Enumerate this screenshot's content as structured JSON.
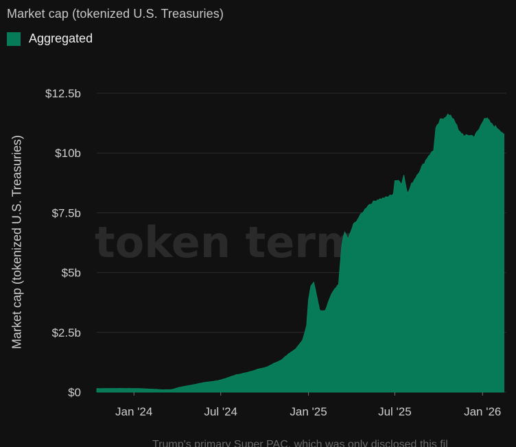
{
  "chart_data": {
    "type": "area",
    "title": "Market cap (tokenized U.S. Treasuries)",
    "ylabel": "Market cap (tokenized U.S. Treasuries)",
    "xlabel": "",
    "legend": {
      "position": "top-left",
      "entries": [
        "Aggregated"
      ]
    },
    "watermark": "token terminal_",
    "grid": true,
    "color": "#077a58",
    "ylim": [
      0,
      12.5
    ],
    "xlim": [
      "2023-10-15",
      "2026-02-20"
    ],
    "yticks": [
      {
        "value": 0,
        "label": "$0"
      },
      {
        "value": 2.5,
        "label": "$2.5b"
      },
      {
        "value": 5,
        "label": "$5b"
      },
      {
        "value": 7.5,
        "label": "$7.5b"
      },
      {
        "value": 10,
        "label": "$10b"
      },
      {
        "value": 12.5,
        "label": "$12.5b"
      }
    ],
    "xticks": [
      {
        "date": "2024-01-01",
        "label": "Jan '24"
      },
      {
        "date": "2024-07-01",
        "label": "Jul '24"
      },
      {
        "date": "2025-01-01",
        "label": "Jan '25"
      },
      {
        "date": "2025-07-01",
        "label": "Jul '25"
      },
      {
        "date": "2026-01-01",
        "label": "Jan '26"
      }
    ],
    "series": [
      {
        "name": "Aggregated",
        "unit": "USD billions",
        "x": [
          "2023-10-15",
          "2023-12-01",
          "2024-01-15",
          "2024-02-15",
          "2024-03-05",
          "2024-03-20",
          "2024-04-05",
          "2024-05-01",
          "2024-06-01",
          "2024-06-25",
          "2024-07-15",
          "2024-08-01",
          "2024-08-25",
          "2024-09-15",
          "2024-10-05",
          "2024-10-20",
          "2024-11-05",
          "2024-11-20",
          "2024-12-05",
          "2024-12-20",
          "2024-12-28",
          "2025-01-01",
          "2025-01-06",
          "2025-01-12",
          "2025-01-18",
          "2025-01-25",
          "2025-02-05",
          "2025-02-18",
          "2025-02-25",
          "2025-03-05",
          "2025-03-12",
          "2025-03-18",
          "2025-03-25",
          "2025-04-05",
          "2025-04-20",
          "2025-05-05",
          "2025-05-25",
          "2025-06-15",
          "2025-06-28",
          "2025-07-01",
          "2025-07-08",
          "2025-07-15",
          "2025-07-20",
          "2025-07-28",
          "2025-08-05",
          "2025-08-20",
          "2025-09-01",
          "2025-09-10",
          "2025-09-20",
          "2025-09-25",
          "2025-10-05",
          "2025-10-20",
          "2025-11-01",
          "2025-11-05",
          "2025-11-12",
          "2025-11-20",
          "2025-11-25",
          "2025-12-05",
          "2025-12-15",
          "2025-12-25",
          "2026-01-05",
          "2026-01-12",
          "2026-01-20",
          "2026-01-28",
          "2026-02-05",
          "2026-02-15"
        ],
        "values": [
          0.15,
          0.16,
          0.15,
          0.12,
          0.1,
          0.11,
          0.2,
          0.3,
          0.42,
          0.48,
          0.6,
          0.72,
          0.82,
          0.95,
          1.05,
          1.2,
          1.35,
          1.6,
          1.8,
          2.2,
          2.8,
          3.9,
          4.45,
          4.6,
          4.05,
          3.4,
          3.4,
          4.1,
          4.3,
          4.5,
          6.2,
          6.7,
          6.4,
          7.0,
          7.4,
          7.8,
          8.05,
          8.15,
          8.3,
          8.8,
          8.9,
          8.7,
          9.1,
          8.3,
          8.7,
          9.2,
          9.6,
          9.9,
          10.1,
          11.0,
          11.4,
          11.6,
          11.45,
          11.3,
          10.9,
          10.8,
          10.7,
          10.75,
          10.7,
          11.0,
          11.5,
          11.4,
          11.2,
          11.1,
          11.0,
          10.8
        ]
      }
    ]
  },
  "bottom_partial_text": "Trump's primary Super PAC, which was only disclosed this fil"
}
